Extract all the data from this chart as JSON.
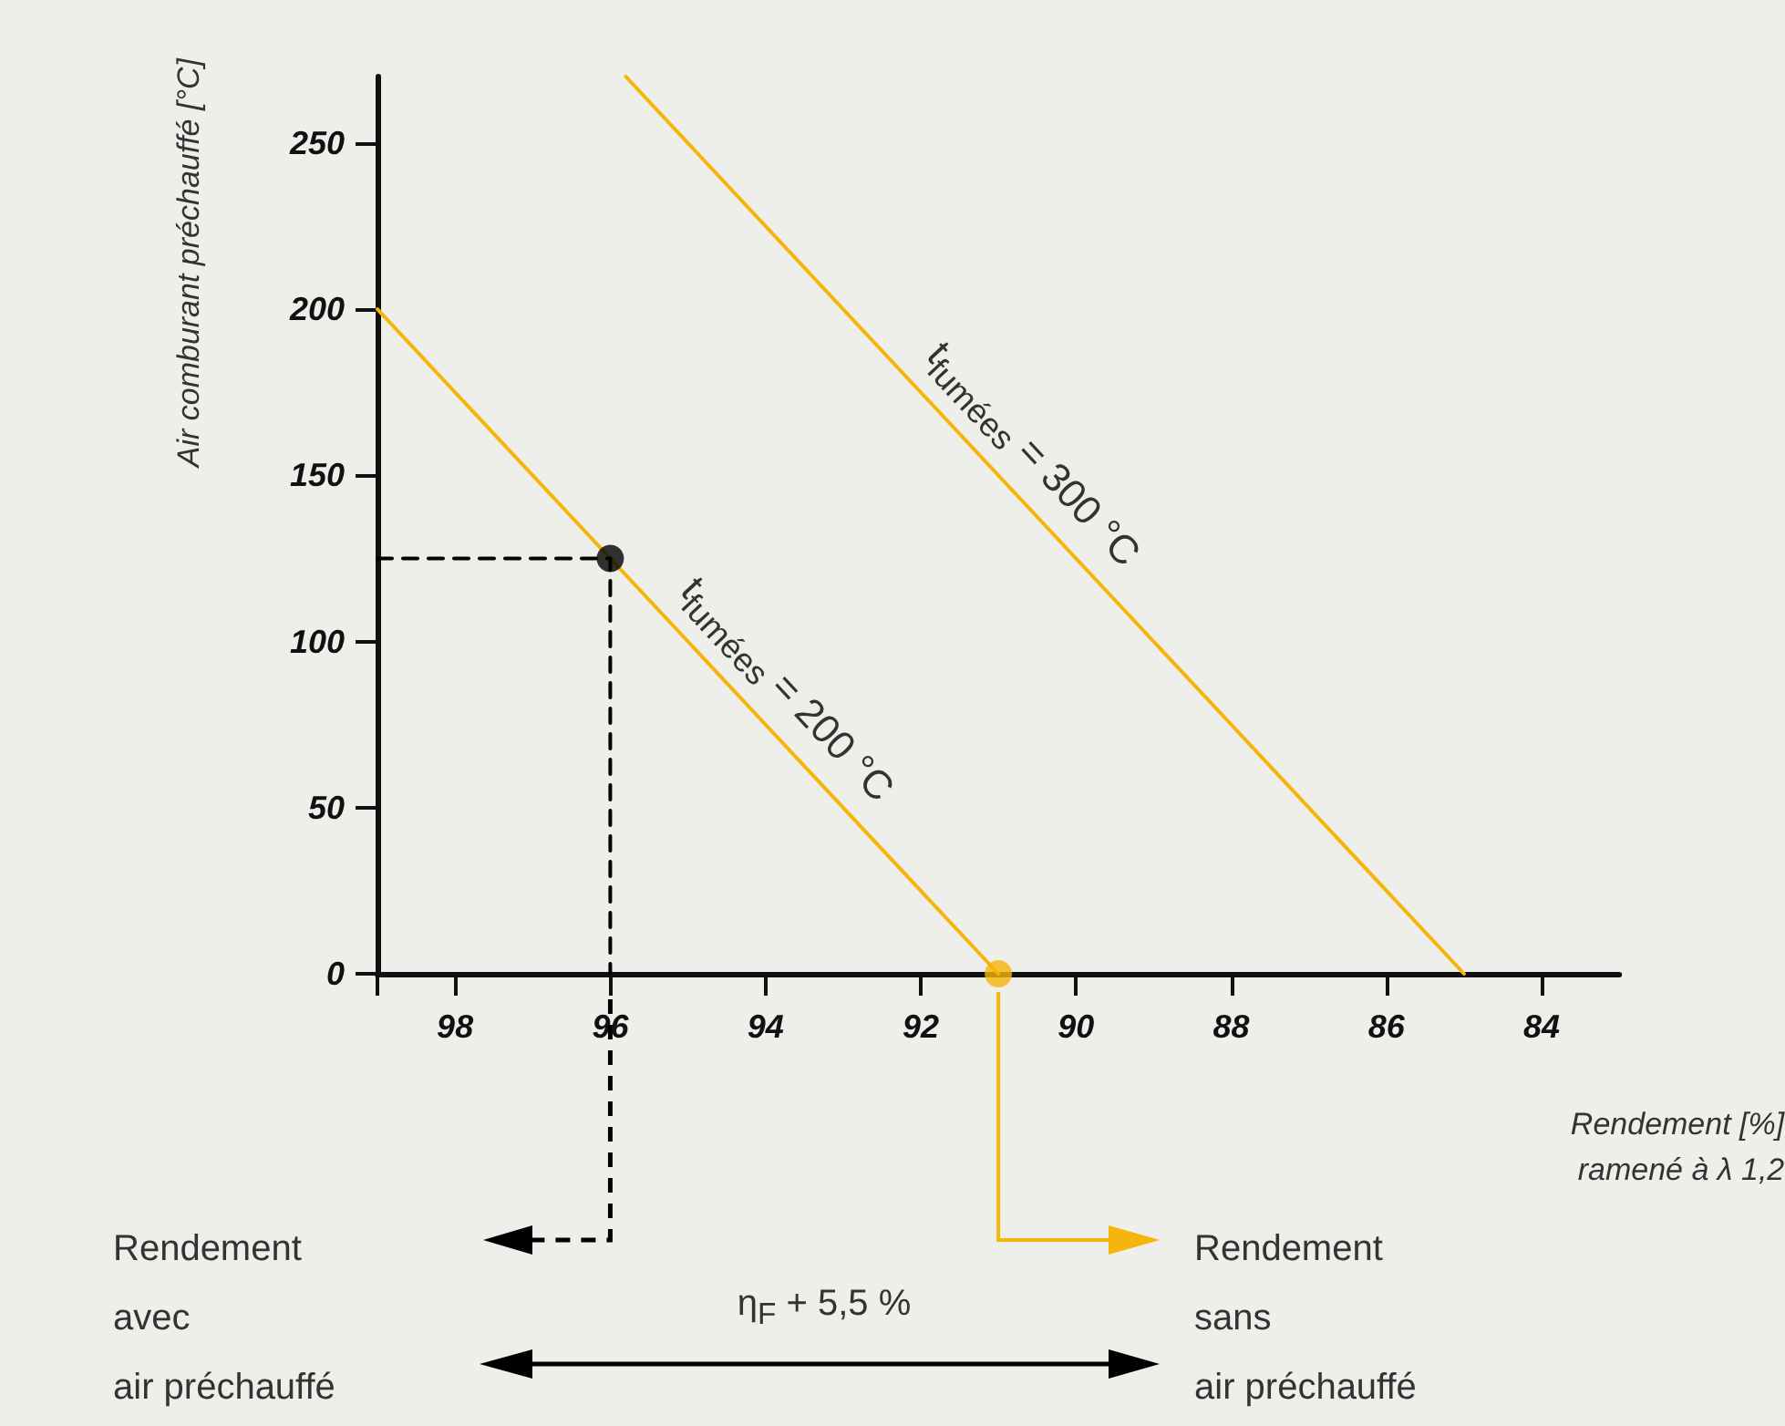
{
  "chart_data": {
    "type": "line",
    "xlabel": "Rendement [%]\nramené à λ 1,2",
    "ylabel": "Air comburant préchauffé [°C]",
    "xlim": [
      99,
      83
    ],
    "xticks": [
      {
        "value": 99,
        "label": null
      },
      98,
      96,
      94,
      92,
      90,
      88,
      86,
      84
    ],
    "ylim": [
      0,
      270
    ],
    "yticks": [
      0,
      50,
      100,
      150,
      200,
      250
    ],
    "grid": false,
    "marker": "none",
    "series": [
      {
        "name": "t$_{fumées}$ = 200 °C",
        "color": "#f5b50a",
        "x": [
          99,
          91
        ],
        "values": [
          200,
          0
        ]
      },
      {
        "name": "t$_{fumées}$ = 300 °C",
        "color": "#f5b50a",
        "x": [
          95.8,
          85
        ],
        "values": [
          270,
          0
        ]
      },
      {
        "color": "#000000",
        "x": [
          99,
          96,
          96
        ],
        "values": [
          125,
          125,
          0
        ],
        "line_style": "dashed"
      },
      {
        "type": "scatter",
        "color": "#000000",
        "x": [
          96
        ],
        "values": [
          125
        ],
        "marker": "circle"
      },
      {
        "type": "scatter",
        "color": "#f5b50a",
        "x": [
          91
        ],
        "values": [
          0
        ],
        "marker": "circle"
      }
    ],
    "annotations": [
      "Rendement\navec\nair préchauffé",
      "Rendement\nsans\nair préchauffé",
      "η$_{F}$ + 5,5 %"
    ]
  }
}
